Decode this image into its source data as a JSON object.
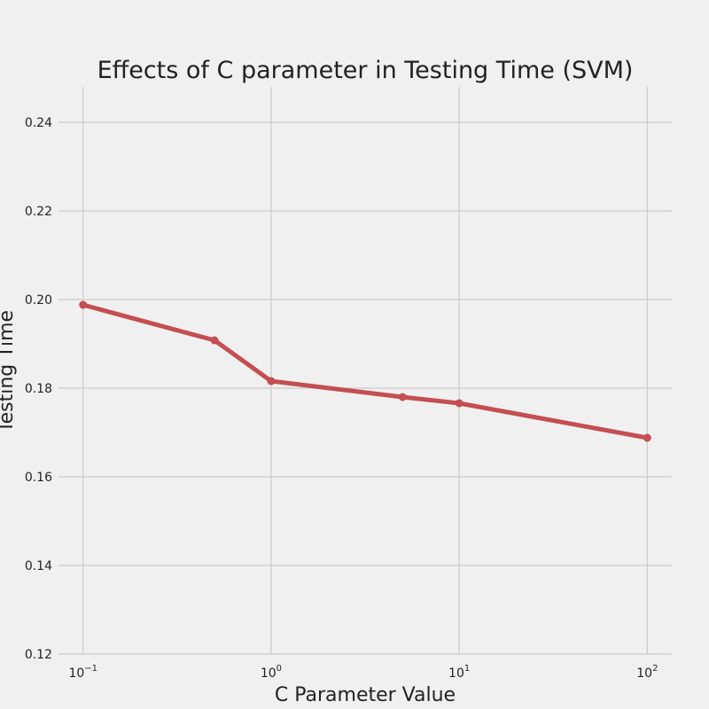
{
  "chart_data": {
    "type": "line",
    "title": "Effects of C parameter in Testing Time (SVM)",
    "xlabel": "C Parameter Value",
    "ylabel": "Testing Time",
    "x_scale": "log",
    "xlim": [
      0.074,
      135
    ],
    "ylim": [
      0.12,
      0.248
    ],
    "x_ticks": [
      {
        "value": 0.1,
        "base": "10",
        "exp": "−1"
      },
      {
        "value": 1,
        "base": "10",
        "exp": "0"
      },
      {
        "value": 10,
        "base": "10",
        "exp": "1"
      },
      {
        "value": 100,
        "base": "10",
        "exp": "2"
      }
    ],
    "y_ticks": [
      "0.12",
      "0.14",
      "0.16",
      "0.18",
      "0.20",
      "0.22",
      "0.24"
    ],
    "grid": true,
    "series": [
      {
        "x": [
          0.1,
          0.5,
          1,
          5,
          10,
          100
        ],
        "y": [
          0.1988,
          0.1908,
          0.1816,
          0.178,
          0.1766,
          0.1688
        ],
        "color": "#c44e52"
      }
    ]
  }
}
